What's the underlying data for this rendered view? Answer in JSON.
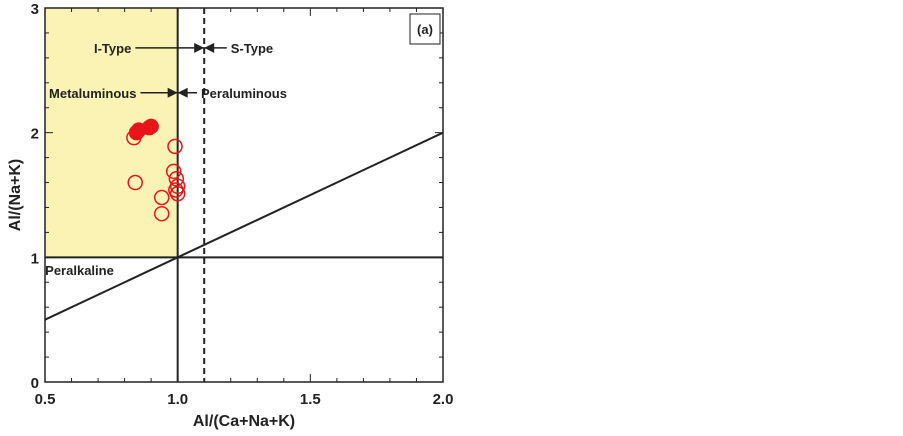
{
  "chart_data": {
    "type": "scatter",
    "panel_label": "(a)",
    "xlabel": "Al/(Ca+Na+K)",
    "ylabel": "Al/(Na+K)",
    "xlim": [
      0.5,
      2.0
    ],
    "ylim": [
      0,
      3
    ],
    "x_ticks": [
      "0.5",
      "1.0",
      "1.5",
      "2.0"
    ],
    "y_ticks": [
      "0",
      "1",
      "2",
      "3"
    ],
    "grid": false,
    "colors": {
      "shaded_region": "#fbf3b4",
      "markers": "#e8161b",
      "lines": "#222222"
    },
    "shaded_region": {
      "x": [
        0.5,
        1.0
      ],
      "y": [
        1,
        3
      ]
    },
    "boundaries": {
      "vertical_solid_x": 1.0,
      "vertical_dashed_x": 1.1,
      "horizontal_y": 1.0,
      "diagonal": {
        "x": [
          0.5,
          2.0
        ],
        "y": [
          0.5,
          2.0
        ]
      }
    },
    "annotations": [
      {
        "text": "I-Type",
        "x": 0.755,
        "y": 2.68,
        "arrow_to_x": 1.1
      },
      {
        "text": "S-Type",
        "x": 1.28,
        "y": 2.68,
        "arrow_to_x": 1.1
      },
      {
        "text": "Metaluminous",
        "x": 0.68,
        "y": 2.32,
        "arrow_to_x": 1.0
      },
      {
        "text": "Peraluminous",
        "x": 1.25,
        "y": 2.32,
        "arrow_to_x": 1.0
      },
      {
        "text": "Peralkaline",
        "x": 0.63,
        "y": 0.9
      }
    ],
    "series": [
      {
        "marker": "filled-circle",
        "points": [
          [
            0.845,
            2.0
          ],
          [
            0.853,
            2.02
          ],
          [
            0.893,
            2.04
          ],
          [
            0.9,
            2.05
          ]
        ]
      },
      {
        "marker": "open-circle",
        "points": [
          [
            0.835,
            1.96
          ],
          [
            0.84,
            1.6
          ],
          [
            0.99,
            1.89
          ],
          [
            0.985,
            1.69
          ],
          [
            0.995,
            1.63
          ],
          [
            1.0,
            1.57
          ],
          [
            0.993,
            1.54
          ],
          [
            1.0,
            1.51
          ],
          [
            0.94,
            1.48
          ],
          [
            0.94,
            1.35
          ]
        ]
      }
    ]
  }
}
